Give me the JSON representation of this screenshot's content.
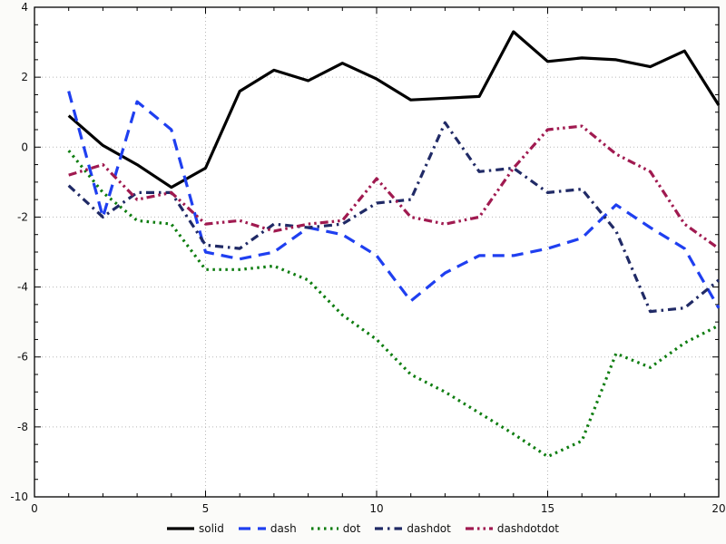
{
  "chart_data": {
    "type": "line",
    "title": "",
    "xlabel": "",
    "ylabel": "",
    "xlim": [
      0,
      20
    ],
    "ylim": [
      -10,
      4
    ],
    "xticks": [
      0,
      5,
      10,
      15,
      20
    ],
    "yticks": [
      -10,
      -8,
      -6,
      -4,
      -2,
      0,
      2,
      4
    ],
    "x_minor_step": 1,
    "y_minor_step": 0.5,
    "grid": true,
    "legend_position": "bottom",
    "x": [
      1,
      2,
      3,
      4,
      5,
      6,
      7,
      8,
      9,
      10,
      11,
      12,
      13,
      14,
      15,
      16,
      17,
      18,
      19,
      20
    ],
    "series": [
      {
        "name": "solid",
        "color": "#000000",
        "dash": null,
        "values": [
          0.9,
          0.05,
          -0.5,
          -1.15,
          -0.6,
          1.6,
          2.2,
          1.9,
          2.4,
          1.95,
          1.35,
          1.4,
          1.45,
          3.3,
          2.45,
          2.55,
          2.5,
          2.3,
          2.75,
          1.2
        ]
      },
      {
        "name": "dash",
        "color": "#1f3ff0",
        "dash": "13 8",
        "values": [
          1.6,
          -2.0,
          1.3,
          0.5,
          -3.0,
          -3.2,
          -3.0,
          -2.3,
          -2.5,
          -3.1,
          -4.4,
          -3.6,
          -3.1,
          -3.1,
          -2.9,
          -2.6,
          -1.65,
          -2.3,
          -2.9,
          -4.6
        ]
      },
      {
        "name": "dot",
        "color": "#0e7d10",
        "dash": "2.5 4.5",
        "values": [
          -0.1,
          -1.3,
          -2.1,
          -2.2,
          -3.5,
          -3.5,
          -3.4,
          -3.8,
          -4.8,
          -5.5,
          -6.5,
          -7.0,
          -7.6,
          -8.2,
          -8.85,
          -8.4,
          -5.9,
          -6.3,
          -5.6,
          -5.1
        ]
      },
      {
        "name": "dashdot",
        "color": "#202a66",
        "dash": "9 5 2.5 5",
        "values": [
          -1.1,
          -2.0,
          -1.3,
          -1.3,
          -2.8,
          -2.9,
          -2.2,
          -2.3,
          -2.2,
          -1.6,
          -1.5,
          0.7,
          -0.7,
          -0.6,
          -1.3,
          -1.2,
          -2.4,
          -4.7,
          -4.6,
          -3.8
        ]
      },
      {
        "name": "dashdotdot",
        "color": "#a01a50",
        "dash": "9 4 2.5 4 2.5 4",
        "values": [
          -0.8,
          -0.5,
          -1.5,
          -1.3,
          -2.2,
          -2.1,
          -2.4,
          -2.2,
          -2.1,
          -0.9,
          -2.0,
          -2.2,
          -2.0,
          -0.6,
          0.5,
          0.6,
          -0.2,
          -0.7,
          -2.2,
          -2.9
        ]
      }
    ]
  },
  "colors": {
    "page_bg": "#fbfbf9",
    "plot_bg": "#ffffff",
    "grid": "#b8b8b8",
    "frame": "#000000",
    "tick_text": "#111111"
  },
  "legend": {
    "labels": [
      "solid",
      "dash",
      "dot",
      "dashdot",
      "dashdotdot"
    ]
  }
}
